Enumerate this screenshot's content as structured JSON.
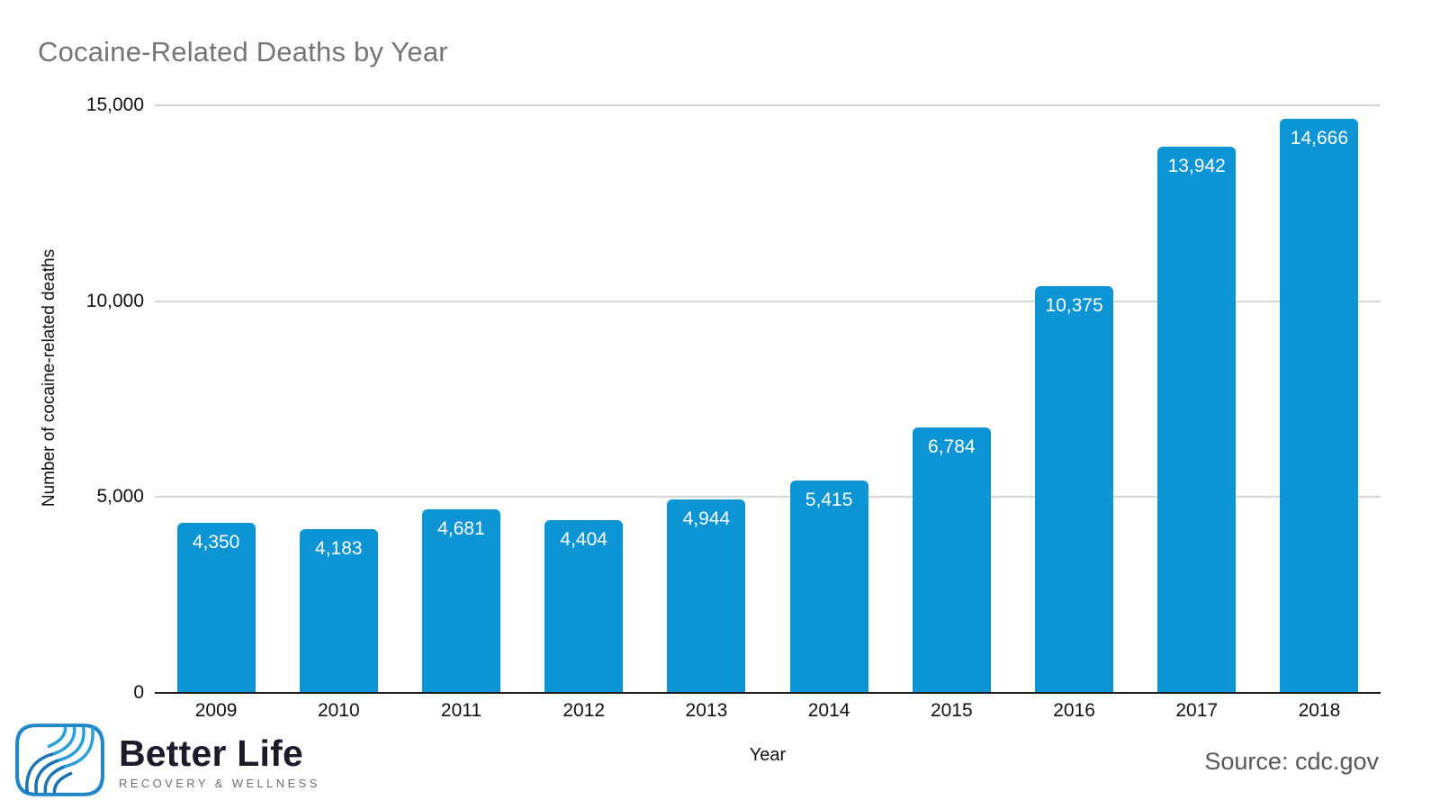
{
  "title": "Cocaine-Related Deaths by Year",
  "chart_data": {
    "type": "bar",
    "title": "Cocaine-Related Deaths by Year",
    "categories": [
      "2009",
      "2010",
      "2011",
      "2012",
      "2013",
      "2014",
      "2015",
      "2016",
      "2017",
      "2018"
    ],
    "values": [
      4350,
      4183,
      4681,
      4404,
      4944,
      5415,
      6784,
      10375,
      13942,
      14666
    ],
    "value_labels": [
      "4,350",
      "4,183",
      "4,681",
      "4,404",
      "4,944",
      "5,415",
      "6,784",
      "10,375",
      "13,942",
      "14,666"
    ],
    "xlabel": "Year",
    "ylabel": "Number of cocaine-related deaths",
    "ylim": [
      0,
      15000
    ],
    "yticks": [
      0,
      5000,
      10000,
      15000
    ],
    "ytick_labels": [
      "0",
      "5,000",
      "10,000",
      "15,000"
    ],
    "grid": true,
    "legend": "none",
    "bar_color": "#0d94d5"
  },
  "colors": {
    "bar": "#0d94d5",
    "title_text": "#757575",
    "gridline": "#d6d6d6",
    "baseline": "#1f1f1f",
    "value_label_text": "#ffffff",
    "logo_dark_blue": "#1d72b4",
    "logo_light_blue": "#2b9fd8",
    "logo_outline_blue": "#2387c7"
  },
  "footer": {
    "brand_name": "Better Life",
    "brand_subtitle": "RECOVERY & WELLNESS",
    "logo_icon": "wave-leaf-icon",
    "source": "Source: cdc.gov"
  }
}
